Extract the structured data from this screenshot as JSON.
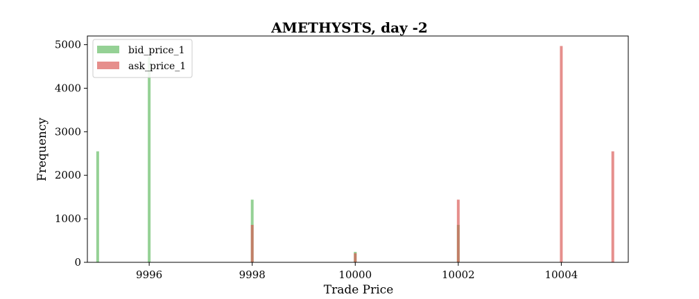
{
  "chart_data": {
    "type": "bar",
    "title": "AMETHYSTS, day -2",
    "xlabel": "Trade Price",
    "ylabel": "Frequency",
    "xlim": [
      9994.8,
      10005.3
    ],
    "ylim": [
      0,
      5200
    ],
    "xticks": [
      9996,
      9998,
      10000,
      10002,
      10004
    ],
    "yticks": [
      0,
      1000,
      2000,
      3000,
      4000,
      5000
    ],
    "legend_position": "top-left",
    "grid": false,
    "series": [
      {
        "name": "bid_price_1",
        "color": "#5cb85c",
        "points": [
          {
            "x": 9995,
            "y": 2550
          },
          {
            "x": 9996,
            "y": 4720
          },
          {
            "x": 9998,
            "y": 1440
          },
          {
            "x": 10000,
            "y": 240
          },
          {
            "x": 10002,
            "y": 860
          }
        ]
      },
      {
        "name": "ask_price_1",
        "color": "#d9534f",
        "points": [
          {
            "x": 9998,
            "y": 860
          },
          {
            "x": 10000,
            "y": 210
          },
          {
            "x": 10002,
            "y": 1440
          },
          {
            "x": 10004,
            "y": 4970
          },
          {
            "x": 10005,
            "y": 2550
          }
        ]
      }
    ]
  }
}
